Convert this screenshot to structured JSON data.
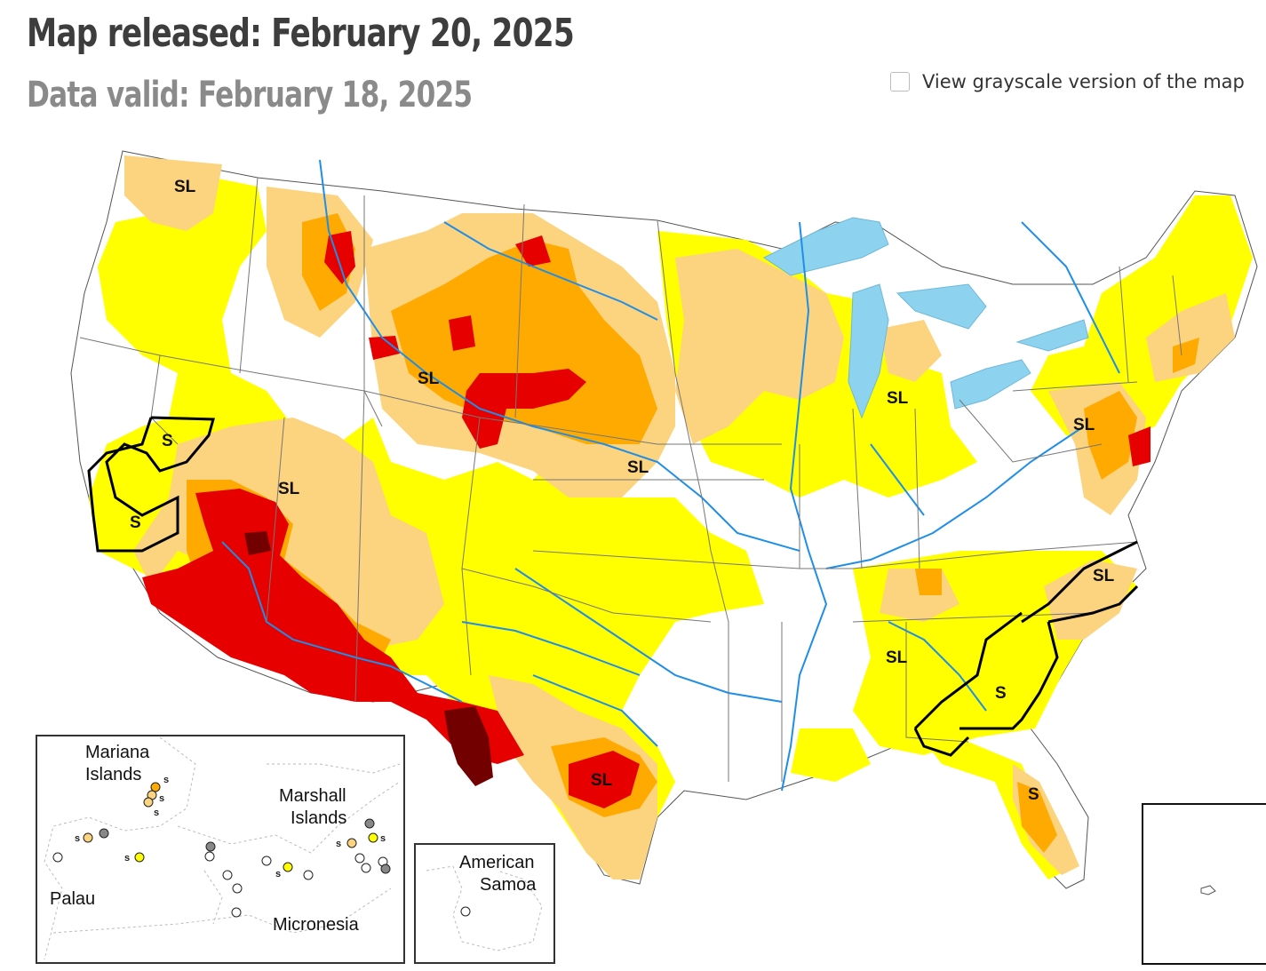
{
  "header": {
    "title": "Map released: February 20, 2025",
    "subtitle": "Data valid: February 18, 2025"
  },
  "grayscale_toggle": {
    "label": "View grayscale version of the map",
    "checked": false
  },
  "map": {
    "impact_labels": [
      "SL",
      "SL",
      "SL",
      "SL",
      "SL",
      "SL",
      "SL",
      "SL",
      "SL",
      "S",
      "S",
      "S",
      "S"
    ],
    "insets": {
      "pacific": {
        "labels": [
          "Mariana Islands",
          "Marshall Islands",
          "Palau",
          "Micronesia"
        ],
        "label_mariana_line1": "Mariana",
        "label_mariana_line2": "Islands",
        "label_marshall_line1": "Marshall",
        "label_marshall_line2": "Islands",
        "label_palau": "Palau",
        "label_micronesia": "Micronesia",
        "marker_s": "s"
      },
      "samoa": {
        "label_line1": "American",
        "label_line2": "Samoa"
      }
    },
    "colors": {
      "none": "#ffffff",
      "D0": "#ffff00",
      "D1": "#fcd37f",
      "D2": "#ffaa00",
      "D3": "#e60000",
      "D4": "#730000",
      "water": "#8dd3f0",
      "river": "#1e8ee8",
      "nodata_marker": "#888888"
    }
  }
}
